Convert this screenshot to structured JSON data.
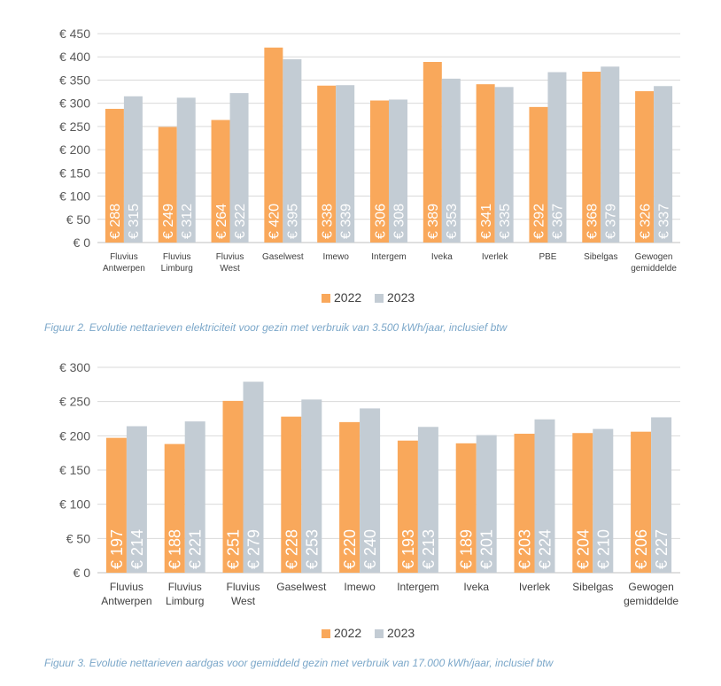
{
  "chart_data": [
    {
      "type": "bar",
      "title": "",
      "categories": [
        [
          "Fluvius",
          "Antwerpen"
        ],
        [
          "Fluvius",
          "Limburg"
        ],
        [
          "Fluvius",
          "West"
        ],
        [
          "Gaselwest"
        ],
        [
          "Imewo"
        ],
        [
          "Intergem"
        ],
        [
          "Iveka"
        ],
        [
          "Iverlek"
        ],
        [
          "PBE"
        ],
        [
          "Sibelgas"
        ],
        [
          "Gewogen",
          "gemiddelde"
        ]
      ],
      "series": [
        {
          "name": "2022",
          "color": "#f9a85b",
          "values": [
            288,
            249,
            264,
            420,
            338,
            306,
            389,
            341,
            292,
            368,
            326
          ]
        },
        {
          "name": "2023",
          "color": "#c3ccd4",
          "values": [
            315,
            312,
            322,
            395,
            339,
            308,
            353,
            335,
            367,
            379,
            337
          ]
        }
      ],
      "ylim": [
        0,
        450
      ],
      "yticks": [
        0,
        50,
        100,
        150,
        200,
        250,
        300,
        350,
        400,
        450
      ],
      "currency_prefix": "€ ",
      "xlabel": "",
      "ylabel": "",
      "legend": "bottom-center",
      "grid": true,
      "caption": "Figuur 2. Evolutie nettarieven elektriciteit voor gezin met verbruik van 3.500 kWh/jaar, inclusief btw"
    },
    {
      "type": "bar",
      "title": "",
      "categories": [
        [
          "Fluvius",
          "Antwerpen"
        ],
        [
          "Fluvius",
          "Limburg"
        ],
        [
          "Fluvius",
          "West"
        ],
        [
          "Gaselwest"
        ],
        [
          "Imewo"
        ],
        [
          "Intergem"
        ],
        [
          "Iveka"
        ],
        [
          "Iverlek"
        ],
        [
          "Sibelgas"
        ],
        [
          "Gewogen",
          "gemiddelde"
        ]
      ],
      "series": [
        {
          "name": "2022",
          "color": "#f9a85b",
          "values": [
            197,
            188,
            251,
            228,
            220,
            193,
            189,
            203,
            204,
            206
          ]
        },
        {
          "name": "2023",
          "color": "#c3ccd4",
          "values": [
            214,
            221,
            279,
            253,
            240,
            213,
            201,
            224,
            210,
            227
          ]
        }
      ],
      "ylim": [
        0,
        300
      ],
      "yticks": [
        0,
        50,
        100,
        150,
        200,
        250,
        300
      ],
      "currency_prefix": "€ ",
      "xlabel": "",
      "ylabel": "",
      "legend": "bottom-center",
      "grid": true,
      "caption": "Figuur 3. Evolutie nettarieven aardgas voor gemiddeld gezin met verbruik van 17.000 kWh/jaar, inclusief btw"
    }
  ]
}
